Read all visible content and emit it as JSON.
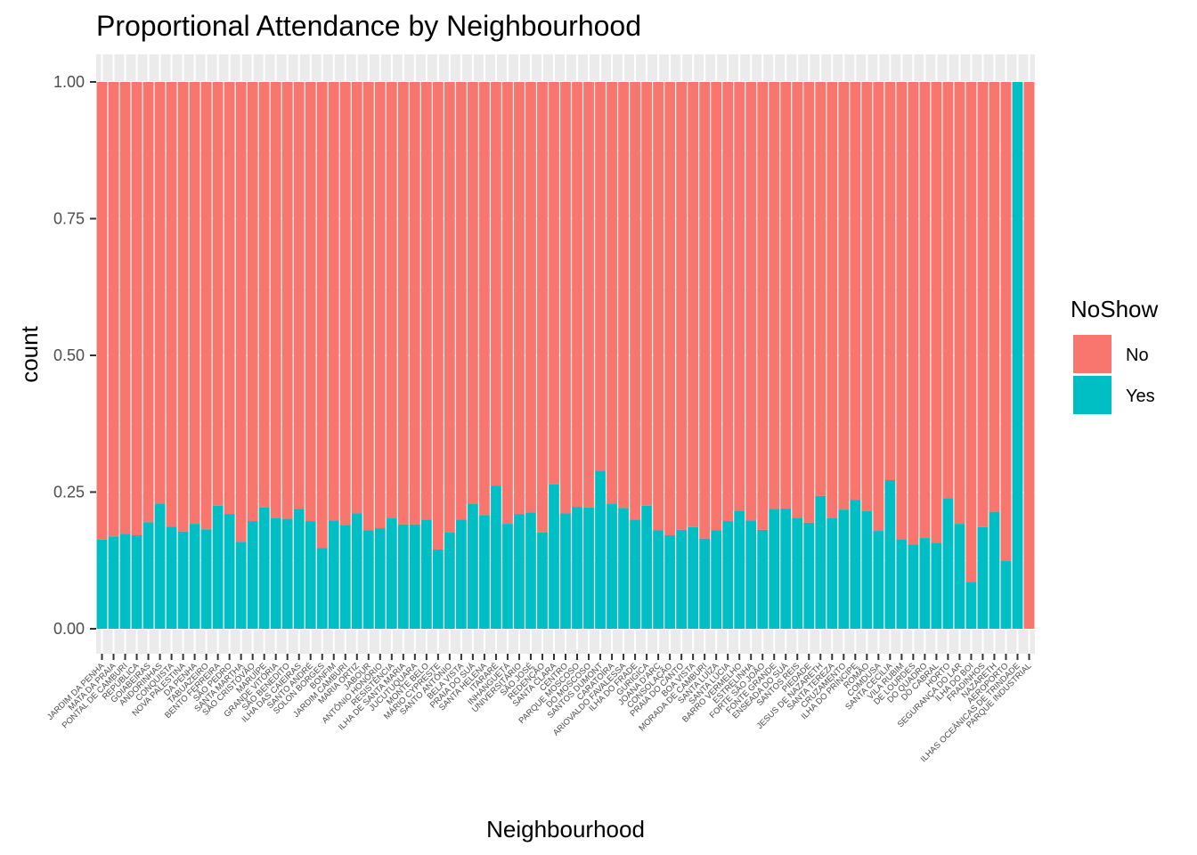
{
  "chart_data": {
    "type": "bar",
    "stacked": true,
    "position": "fill",
    "title": "Proportional Attendance by Neighbourhood",
    "xlabel": "Neighbourhood",
    "ylabel": "count",
    "ylim": [
      0,
      1
    ],
    "yticks": [
      "0.00",
      "0.25",
      "0.50",
      "0.75",
      "1.00"
    ],
    "grid": true,
    "legend": {
      "title": "NoShow",
      "placement": "right",
      "entries": [
        {
          "label": "No",
          "color": "#F8766D"
        },
        {
          "label": "Yes",
          "color": "#00BFC4"
        }
      ]
    },
    "categories": [
      "JARDIM DA PENHA",
      "MATA DA PRAIA",
      "PONTAL DE CAMBURI",
      "REPÚBLICA",
      "GOIABEIRAS",
      "ANDORINHAS",
      "CONQUISTA",
      "NOVA PALESTINA",
      "DA PENHA",
      "TABUAZEIRO",
      "BENTO FERREIRA",
      "SÃO PEDRO",
      "SANTA MARTHA",
      "SÃO CRISTÓVÃO",
      "MARUÍPE",
      "GRANDE VITÓRIA",
      "SÃO BENEDITO",
      "ILHA DAS CAIEIRAS",
      "SANTO ANDRÉ",
      "SOLON BORGES",
      "BONFIM",
      "JARDIM CAMBURI",
      "MARIA ORTIZ",
      "JABOUR",
      "ANTÔNIO HONÓRIO",
      "RESISTÊNCIA",
      "ILHA DE SANTA MARIA",
      "JUCUTUQUARA",
      "MONTE BELO",
      "MÁRIO CYPRESTE",
      "SANTO ANTÔNIO",
      "BELA VISTA",
      "PRAIA DO SUÁ",
      "SANTA HELENA",
      "ITARARÉ",
      "INHANGUETÁ",
      "UNIVERSITÁRIO",
      "SÃO JOSÉ",
      "REDENÇÃO",
      "SANTA CLARA",
      "CENTRO",
      "PARQUE MOSCOSO",
      "DO MOSCOSO",
      "SANTOS DUMONT",
      "CARATOÍRA",
      "ARIOVALDO FAVALESSA",
      "ILHA DO FRADE",
      "GURIGICA",
      "JOANA D'ARC",
      "CONSOLAÇÃO",
      "PRAIA DO CANTO",
      "BOA VISTA",
      "MORADA DE CAMBURI",
      "SANTA LUÍZA",
      "SANTA LÚCIA",
      "BARRO VERMELHO",
      "ESTRELINHA",
      "FORTE SÃO JOÃO",
      "FONTE GRANDE",
      "ENSEADA DO SUÁ",
      "SANTOS REIS",
      "PIEDADE",
      "JESUS DE NAZARETH",
      "SANTA TEREZA",
      "CRUZAMENTO",
      "ILHA DO PRÍNCIPE",
      "ROMÃO",
      "COMDUSA",
      "SANTA CECÍLIA",
      "VILA RUBIM",
      "DE LOURDES",
      "DO QUADRO",
      "DO CABRAL",
      "HORTO",
      "SEGURANÇA DO LAR",
      "ILHA DO BOI",
      "FRADINHOS",
      "NAZARETH",
      "AEROPORTO",
      "ILHAS OCEÂNICAS DE TRINDADE",
      "PARQUE INDUSTRIAL"
    ],
    "series": [
      {
        "name": "Yes",
        "values": [
          0.163,
          0.169,
          0.174,
          0.171,
          0.195,
          0.229,
          0.187,
          0.178,
          0.192,
          0.182,
          0.225,
          0.21,
          0.159,
          0.197,
          0.222,
          0.203,
          0.201,
          0.219,
          0.197,
          0.148,
          0.198,
          0.19,
          0.211,
          0.18,
          0.184,
          0.203,
          0.191,
          0.191,
          0.2,
          0.145,
          0.176,
          0.2,
          0.228,
          0.208,
          0.262,
          0.192,
          0.21,
          0.213,
          0.176,
          0.264,
          0.211,
          0.223,
          0.222,
          0.289,
          0.229,
          0.221,
          0.2,
          0.225,
          0.18,
          0.171,
          0.181,
          0.186,
          0.165,
          0.18,
          0.197,
          0.216,
          0.198,
          0.181,
          0.219,
          0.22,
          0.203,
          0.194,
          0.243,
          0.202,
          0.218,
          0.236,
          0.215,
          0.179,
          0.272,
          0.164,
          0.154,
          0.166,
          0.157,
          0.239,
          0.192,
          0.086,
          0.186,
          0.214,
          0.125,
          1.0,
          0.0
        ]
      },
      {
        "name": "No",
        "values": [
          0.837,
          0.831,
          0.826,
          0.829,
          0.805,
          0.771,
          0.813,
          0.822,
          0.808,
          0.818,
          0.775,
          0.79,
          0.841,
          0.803,
          0.778,
          0.797,
          0.799,
          0.781,
          0.803,
          0.852,
          0.802,
          0.81,
          0.789,
          0.82,
          0.816,
          0.797,
          0.809,
          0.809,
          0.8,
          0.855,
          0.824,
          0.8,
          0.772,
          0.792,
          0.738,
          0.808,
          0.79,
          0.787,
          0.824,
          0.736,
          0.789,
          0.777,
          0.778,
          0.711,
          0.771,
          0.779,
          0.8,
          0.775,
          0.82,
          0.829,
          0.819,
          0.814,
          0.835,
          0.82,
          0.803,
          0.784,
          0.802,
          0.819,
          0.781,
          0.78,
          0.797,
          0.806,
          0.757,
          0.798,
          0.782,
          0.764,
          0.785,
          0.821,
          0.728,
          0.836,
          0.846,
          0.834,
          0.843,
          0.761,
          0.808,
          0.914,
          0.814,
          0.786,
          0.875,
          0.0,
          1.0
        ]
      }
    ]
  }
}
